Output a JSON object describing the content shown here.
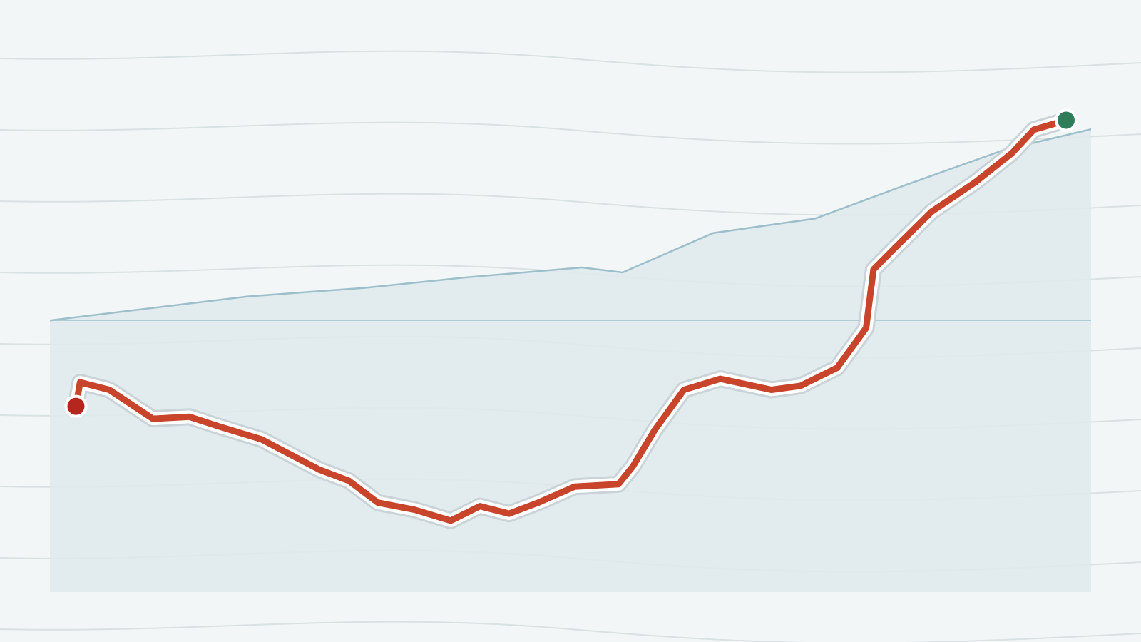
{
  "chart_data": {
    "type": "line",
    "xlim": [
      0,
      100
    ],
    "ylim": [
      0,
      100
    ],
    "series": [
      {
        "color": "#c8442a",
        "start_color": "#b5261e",
        "end_color": "#2e7d5b",
        "x": [
          2.5,
          2.9,
          5.7,
          9.9,
          13.4,
          16.2,
          20.3,
          25.9,
          28.7,
          31.5,
          35.0,
          38.5,
          41.3,
          44.1,
          46.9,
          50.4,
          54.6,
          56.0,
          58.1,
          60.9,
          64.4,
          69.3,
          72.1,
          75.6,
          78.4,
          78.7,
          79.1,
          81.2,
          84.7,
          88.9,
          92.4,
          94.5,
          97.6
        ],
        "values": [
          37.2,
          42.0,
          40.5,
          34.7,
          35.1,
          33.2,
          30.6,
          24.5,
          22.3,
          17.9,
          16.5,
          14.3,
          17.2,
          15.7,
          17.9,
          21.1,
          21.6,
          25.2,
          32.5,
          40.5,
          42.7,
          40.5,
          41.3,
          44.9,
          52.9,
          58.0,
          64.6,
          69.0,
          76.2,
          82.1,
          87.9,
          92.6,
          94.5
        ]
      },
      {
        "color": "#9dbfcb",
        "fill": "#dfeaec",
        "x": [
          0,
          19.0,
          30.1,
          39.9,
          51.1,
          55.0,
          63.7,
          73.5,
          81.9,
          91.7,
          100
        ],
        "values": [
          54.4,
          59.2,
          60.9,
          63.0,
          65.0,
          64.0,
          71.9,
          74.8,
          81.3,
          88.6,
          92.7
        ]
      }
    ]
  }
}
